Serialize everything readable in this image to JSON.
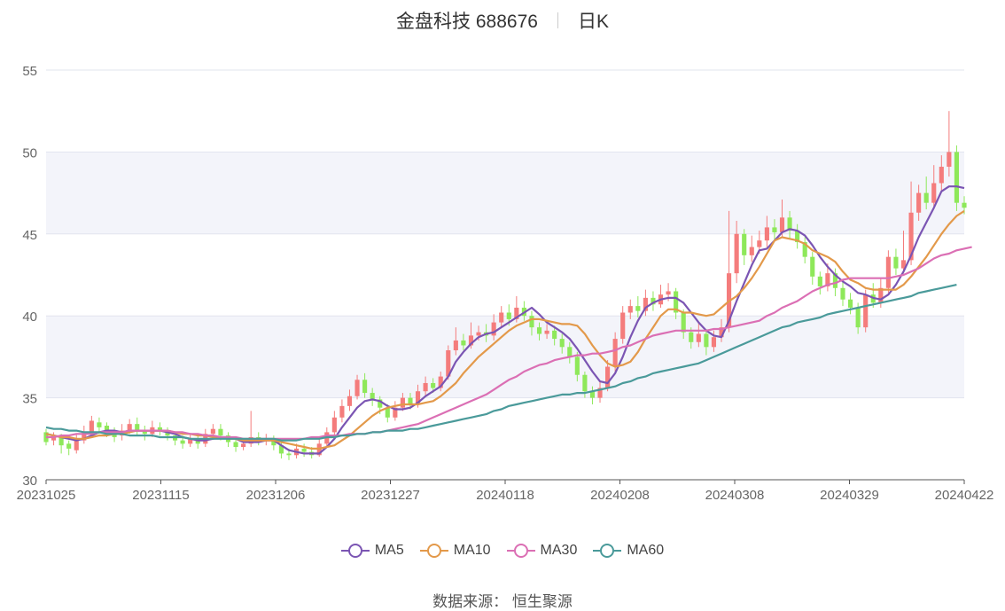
{
  "title": {
    "name": "金盘科技 688676",
    "period": "日K"
  },
  "source": "数据来源： 恒生聚源",
  "chart_data": {
    "type": "candlestick",
    "ylim": [
      30,
      55
    ],
    "yticks": [
      30,
      35,
      40,
      45,
      50,
      55
    ],
    "xticks": [
      "20231025",
      "20231115",
      "20231206",
      "20231227",
      "20240118",
      "20240208",
      "20240308",
      "20240329",
      "20240422"
    ],
    "colors": {
      "up": "#f47c7c",
      "down": "#8ee85a",
      "MA5": "#7b55b3",
      "MA10": "#e3994a",
      "MA30": "#db6fb4",
      "MA60": "#4a9a9a"
    },
    "candles": [
      [
        32.9,
        32.3,
        33.1,
        32.1
      ],
      [
        32.4,
        32.7,
        32.9,
        32.1
      ],
      [
        32.6,
        32.1,
        32.8,
        31.6
      ],
      [
        32.2,
        31.9,
        32.4,
        31.5
      ],
      [
        31.8,
        32.5,
        32.8,
        31.6
      ],
      [
        32.4,
        32.9,
        33.3,
        32.2
      ],
      [
        32.9,
        33.6,
        33.9,
        32.7
      ],
      [
        33.5,
        33.2,
        33.8,
        32.8
      ],
      [
        33.3,
        32.9,
        33.5,
        32.6
      ],
      [
        32.9,
        32.6,
        33.2,
        32.3
      ],
      [
        32.7,
        33.0,
        33.4,
        32.4
      ],
      [
        33.0,
        33.4,
        33.7,
        32.8
      ],
      [
        33.4,
        33.0,
        33.8,
        32.7
      ],
      [
        33.0,
        32.8,
        33.3,
        32.4
      ],
      [
        32.8,
        33.2,
        33.6,
        32.6
      ],
      [
        33.2,
        33.0,
        33.5,
        32.7
      ],
      [
        33.0,
        32.7,
        33.2,
        32.4
      ],
      [
        32.7,
        32.4,
        32.9,
        32.1
      ],
      [
        32.4,
        32.2,
        32.7,
        31.9
      ],
      [
        32.2,
        32.5,
        32.8,
        32.0
      ],
      [
        32.5,
        32.2,
        32.8,
        31.9
      ],
      [
        32.2,
        32.8,
        33.1,
        32.0
      ],
      [
        32.8,
        33.1,
        33.4,
        32.5
      ],
      [
        33.1,
        32.7,
        33.4,
        32.4
      ],
      [
        32.7,
        32.3,
        32.9,
        32.0
      ],
      [
        32.3,
        32.0,
        32.6,
        31.7
      ],
      [
        32.0,
        32.2,
        32.5,
        31.8
      ],
      [
        32.2,
        32.6,
        34.2,
        32.0
      ],
      [
        32.6,
        32.4,
        32.9,
        32.1
      ],
      [
        32.4,
        32.5,
        32.8,
        32.1
      ],
      [
        32.5,
        32.1,
        32.7,
        31.8
      ],
      [
        32.1,
        31.6,
        32.3,
        31.3
      ],
      [
        31.6,
        31.5,
        31.9,
        31.2
      ],
      [
        31.5,
        31.9,
        32.2,
        31.3
      ],
      [
        31.9,
        31.7,
        32.2,
        31.4
      ],
      [
        31.7,
        31.5,
        32.0,
        31.3
      ],
      [
        31.5,
        32.2,
        32.6,
        31.4
      ],
      [
        32.2,
        32.9,
        33.2,
        32.0
      ],
      [
        32.9,
        33.8,
        34.2,
        32.7
      ],
      [
        33.8,
        34.5,
        34.9,
        33.5
      ],
      [
        34.5,
        35.1,
        35.5,
        34.2
      ],
      [
        35.1,
        36.1,
        36.4,
        34.9
      ],
      [
        36.1,
        35.3,
        36.5,
        35.0
      ],
      [
        35.3,
        34.9,
        35.6,
        34.5
      ],
      [
        34.9,
        34.4,
        35.1,
        34.0
      ],
      [
        34.4,
        33.8,
        34.6,
        33.5
      ],
      [
        33.8,
        34.4,
        34.8,
        33.6
      ],
      [
        34.4,
        35.0,
        35.3,
        34.2
      ],
      [
        35.0,
        34.6,
        35.3,
        34.3
      ],
      [
        34.6,
        35.4,
        35.8,
        34.4
      ],
      [
        35.4,
        35.9,
        36.3,
        35.1
      ],
      [
        35.9,
        35.6,
        36.2,
        35.3
      ],
      [
        35.6,
        36.3,
        36.6,
        35.4
      ],
      [
        36.3,
        37.9,
        38.2,
        36.1
      ],
      [
        37.9,
        38.5,
        39.3,
        37.6
      ],
      [
        38.5,
        38.2,
        38.9,
        37.9
      ],
      [
        38.2,
        38.8,
        39.6,
        38.0
      ],
      [
        38.8,
        39.0,
        39.4,
        38.5
      ],
      [
        39.0,
        38.8,
        39.5,
        38.4
      ],
      [
        38.8,
        39.6,
        40.1,
        38.5
      ],
      [
        39.6,
        40.2,
        40.6,
        39.3
      ],
      [
        40.2,
        39.8,
        40.7,
        39.4
      ],
      [
        39.8,
        40.5,
        41.2,
        39.6
      ],
      [
        40.5,
        40.0,
        40.9,
        39.7
      ],
      [
        40.0,
        39.3,
        40.3,
        38.8
      ],
      [
        39.3,
        38.9,
        39.6,
        38.5
      ],
      [
        38.9,
        39.1,
        39.5,
        38.6
      ],
      [
        39.1,
        38.6,
        39.4,
        38.2
      ],
      [
        38.6,
        38.1,
        38.9,
        37.7
      ],
      [
        38.1,
        37.5,
        38.4,
        37.1
      ],
      [
        37.5,
        36.4,
        37.8,
        36.0
      ],
      [
        36.4,
        35.4,
        36.6,
        35.0
      ],
      [
        35.4,
        35.0,
        35.7,
        34.6
      ],
      [
        35.0,
        35.6,
        36.0,
        34.7
      ],
      [
        35.6,
        36.9,
        37.3,
        35.4
      ],
      [
        36.9,
        38.6,
        39.0,
        36.6
      ],
      [
        38.6,
        40.2,
        40.6,
        38.3
      ],
      [
        40.2,
        40.6,
        41.0,
        39.8
      ],
      [
        40.6,
        40.3,
        41.2,
        39.9
      ],
      [
        40.3,
        41.1,
        41.6,
        40.0
      ],
      [
        41.1,
        40.7,
        41.5,
        40.3
      ],
      [
        40.7,
        41.3,
        41.9,
        40.5
      ],
      [
        41.3,
        41.5,
        42.0,
        40.9
      ],
      [
        41.5,
        40.2,
        41.7,
        39.8
      ],
      [
        40.2,
        39.0,
        40.4,
        38.6
      ],
      [
        39.0,
        38.4,
        39.3,
        38.0
      ],
      [
        38.4,
        38.9,
        39.6,
        38.1
      ],
      [
        38.9,
        38.1,
        39.2,
        37.6
      ],
      [
        38.1,
        38.7,
        39.1,
        37.8
      ],
      [
        38.7,
        39.3,
        39.8,
        38.4
      ],
      [
        39.3,
        42.6,
        46.4,
        39.0
      ],
      [
        42.6,
        45.0,
        45.8,
        42.0
      ],
      [
        45.0,
        43.7,
        45.3,
        43.1
      ],
      [
        43.7,
        44.2,
        44.9,
        43.3
      ],
      [
        44.2,
        44.6,
        45.2,
        43.8
      ],
      [
        44.6,
        45.4,
        46.1,
        44.2
      ],
      [
        45.4,
        45.1,
        45.9,
        44.6
      ],
      [
        45.1,
        46.0,
        47.1,
        44.8
      ],
      [
        46.0,
        45.2,
        46.4,
        44.7
      ],
      [
        45.2,
        44.5,
        45.6,
        44.1
      ],
      [
        44.5,
        43.6,
        44.8,
        43.2
      ],
      [
        43.6,
        42.4,
        43.9,
        41.9
      ],
      [
        42.4,
        41.8,
        42.7,
        41.3
      ],
      [
        41.8,
        42.6,
        43.2,
        41.5
      ],
      [
        42.6,
        41.7,
        42.9,
        41.2
      ],
      [
        41.7,
        41.0,
        42.1,
        40.6
      ],
      [
        41.0,
        40.5,
        41.4,
        40.1
      ],
      [
        40.5,
        39.3,
        40.8,
        38.9
      ],
      [
        39.3,
        41.3,
        41.6,
        39.0
      ],
      [
        41.3,
        40.8,
        42.0,
        40.5
      ],
      [
        40.8,
        41.7,
        42.3,
        40.5
      ],
      [
        41.7,
        43.6,
        44.0,
        41.4
      ],
      [
        43.6,
        42.9,
        44.1,
        42.5
      ],
      [
        42.9,
        43.4,
        45.2,
        42.6
      ],
      [
        43.4,
        46.3,
        48.2,
        43.1
      ],
      [
        46.3,
        47.5,
        48.0,
        45.8
      ],
      [
        47.5,
        46.9,
        48.5,
        46.5
      ],
      [
        46.9,
        48.1,
        49.2,
        46.6
      ],
      [
        48.1,
        49.1,
        49.8,
        47.6
      ],
      [
        49.1,
        50.0,
        52.5,
        48.5
      ],
      [
        50.0,
        46.9,
        50.4,
        46.4
      ],
      [
        46.9,
        46.6,
        47.3,
        46.2
      ]
    ],
    "series": [
      {
        "name": "MA5",
        "values": [
          32.8,
          32.7,
          32.6,
          32.5,
          32.4,
          32.5,
          32.7,
          32.9,
          33.0,
          33.0,
          32.9,
          33.0,
          33.0,
          33.0,
          33.0,
          33.0,
          32.9,
          32.8,
          32.6,
          32.5,
          32.4,
          32.4,
          32.5,
          32.6,
          32.6,
          32.5,
          32.3,
          32.3,
          32.3,
          32.4,
          32.4,
          32.1,
          31.8,
          31.7,
          31.6,
          31.6,
          31.6,
          32.0,
          32.5,
          33.2,
          33.8,
          34.4,
          34.8,
          34.9,
          34.8,
          34.5,
          34.3,
          34.3,
          34.4,
          34.7,
          35.1,
          35.4,
          35.7,
          36.3,
          37.2,
          37.8,
          38.3,
          38.7,
          38.9,
          39.0,
          39.3,
          39.6,
          39.9,
          40.2,
          40.5,
          40.1,
          39.6,
          39.3,
          39.0,
          38.6,
          38.0,
          37.3,
          36.6,
          36.0,
          35.9,
          36.5,
          37.5,
          38.7,
          39.7,
          40.5,
          40.8,
          41.0,
          41.1,
          41.1,
          40.8,
          40.2,
          39.6,
          39.1,
          38.8,
          38.7,
          39.7,
          40.9,
          42.0,
          43.1,
          44.0,
          44.1,
          44.6,
          45.1,
          45.3,
          45.2,
          44.9,
          44.3,
          43.6,
          43.0,
          42.5,
          42.1,
          41.8,
          41.4,
          41.3,
          41.1,
          41.0,
          41.3,
          41.9,
          42.7,
          43.7,
          44.8,
          45.7,
          46.6,
          47.6,
          47.9,
          47.9,
          47.8
        ]
      },
      {
        "name": "MA10",
        "values": [
          32.8,
          32.7,
          32.6,
          32.6,
          32.5,
          32.5,
          32.6,
          32.7,
          32.7,
          32.8,
          32.8,
          32.9,
          33.0,
          33.0,
          33.0,
          33.0,
          33.0,
          32.9,
          32.8,
          32.8,
          32.7,
          32.7,
          32.6,
          32.6,
          32.5,
          32.5,
          32.4,
          32.4,
          32.4,
          32.4,
          32.4,
          32.3,
          32.2,
          32.1,
          32.0,
          31.9,
          31.9,
          32.0,
          32.1,
          32.4,
          32.7,
          33.1,
          33.5,
          33.9,
          34.2,
          34.4,
          34.5,
          34.6,
          34.6,
          34.6,
          34.7,
          34.8,
          35.1,
          35.5,
          35.9,
          36.5,
          37.0,
          37.5,
          37.9,
          38.3,
          38.7,
          39.1,
          39.4,
          39.6,
          39.8,
          39.8,
          39.7,
          39.6,
          39.5,
          39.5,
          39.4,
          38.9,
          38.2,
          37.6,
          37.1,
          36.9,
          37.0,
          37.2,
          37.8,
          38.6,
          39.3,
          40.0,
          40.4,
          40.4,
          40.2,
          40.2,
          40.1,
          40.0,
          40.1,
          40.5,
          40.9,
          41.2,
          41.7,
          42.3,
          43.0,
          43.8,
          44.6,
          44.8,
          44.7,
          44.6,
          44.4,
          44.0,
          43.8,
          43.6,
          43.3,
          42.7,
          42.2,
          42.0,
          41.7,
          41.6,
          41.6,
          41.6,
          41.6,
          41.9,
          42.4,
          43.0,
          43.6,
          44.3,
          45.0,
          45.6,
          46.1,
          46.4
        ]
      },
      {
        "name": "MA30",
        "values": [
          32.6,
          32.6,
          32.7,
          32.7,
          32.8,
          32.8,
          32.8,
          32.9,
          32.9,
          32.9,
          32.9,
          33.0,
          33.0,
          33.0,
          33.0,
          33.0,
          33.0,
          32.9,
          32.9,
          32.8,
          32.8,
          32.7,
          32.7,
          32.6,
          32.6,
          32.6,
          32.5,
          32.5,
          32.5,
          32.5,
          32.5,
          32.5,
          32.5,
          32.5,
          32.5,
          32.6,
          32.6,
          32.7,
          32.7,
          32.7,
          32.8,
          32.8,
          32.8,
          32.9,
          32.9,
          33.0,
          33.1,
          33.2,
          33.3,
          33.4,
          33.6,
          33.8,
          34.0,
          34.2,
          34.4,
          34.6,
          34.8,
          35.0,
          35.2,
          35.5,
          35.8,
          36.1,
          36.3,
          36.6,
          36.8,
          37.0,
          37.1,
          37.3,
          37.4,
          37.5,
          37.6,
          37.6,
          37.7,
          37.7,
          37.8,
          37.9,
          38.1,
          38.2,
          38.4,
          38.6,
          38.8,
          38.9,
          39.0,
          39.1,
          39.1,
          39.1,
          39.1,
          39.1,
          39.2,
          39.2,
          39.3,
          39.4,
          39.5,
          39.6,
          39.7,
          40.0,
          40.2,
          40.5,
          40.7,
          40.9,
          41.2,
          41.5,
          41.7,
          41.9,
          42.0,
          42.2,
          42.3,
          42.3,
          42.3,
          42.3,
          42.3,
          42.3,
          42.4,
          42.5,
          42.7,
          42.9,
          43.2,
          43.5,
          43.7,
          43.8,
          44.0,
          44.1,
          44.2
        ]
      },
      {
        "name": "MA60",
        "values": [
          33.2,
          33.1,
          33.1,
          33.0,
          33.0,
          32.9,
          32.9,
          32.9,
          32.8,
          32.8,
          32.8,
          32.7,
          32.7,
          32.7,
          32.7,
          32.6,
          32.6,
          32.6,
          32.6,
          32.5,
          32.5,
          32.5,
          32.5,
          32.5,
          32.5,
          32.5,
          32.5,
          32.5,
          32.5,
          32.5,
          32.5,
          32.4,
          32.4,
          32.4,
          32.5,
          32.5,
          32.5,
          32.6,
          32.6,
          32.7,
          32.7,
          32.8,
          32.8,
          32.9,
          32.9,
          33.0,
          33.0,
          33.0,
          33.1,
          33.1,
          33.2,
          33.3,
          33.4,
          33.5,
          33.6,
          33.7,
          33.8,
          33.9,
          34.0,
          34.2,
          34.3,
          34.5,
          34.6,
          34.7,
          34.8,
          34.9,
          35.0,
          35.1,
          35.2,
          35.2,
          35.3,
          35.3,
          35.4,
          35.5,
          35.6,
          35.7,
          35.9,
          36.0,
          36.2,
          36.3,
          36.5,
          36.6,
          36.7,
          36.8,
          36.9,
          37.0,
          37.1,
          37.3,
          37.5,
          37.7,
          37.9,
          38.1,
          38.3,
          38.5,
          38.7,
          38.9,
          39.1,
          39.3,
          39.4,
          39.6,
          39.7,
          39.8,
          39.9,
          40.1,
          40.2,
          40.3,
          40.4,
          40.5,
          40.6,
          40.7,
          40.8,
          40.9,
          41.0,
          41.1,
          41.2,
          41.4,
          41.5,
          41.6,
          41.7,
          41.8,
          41.9
        ]
      }
    ]
  }
}
